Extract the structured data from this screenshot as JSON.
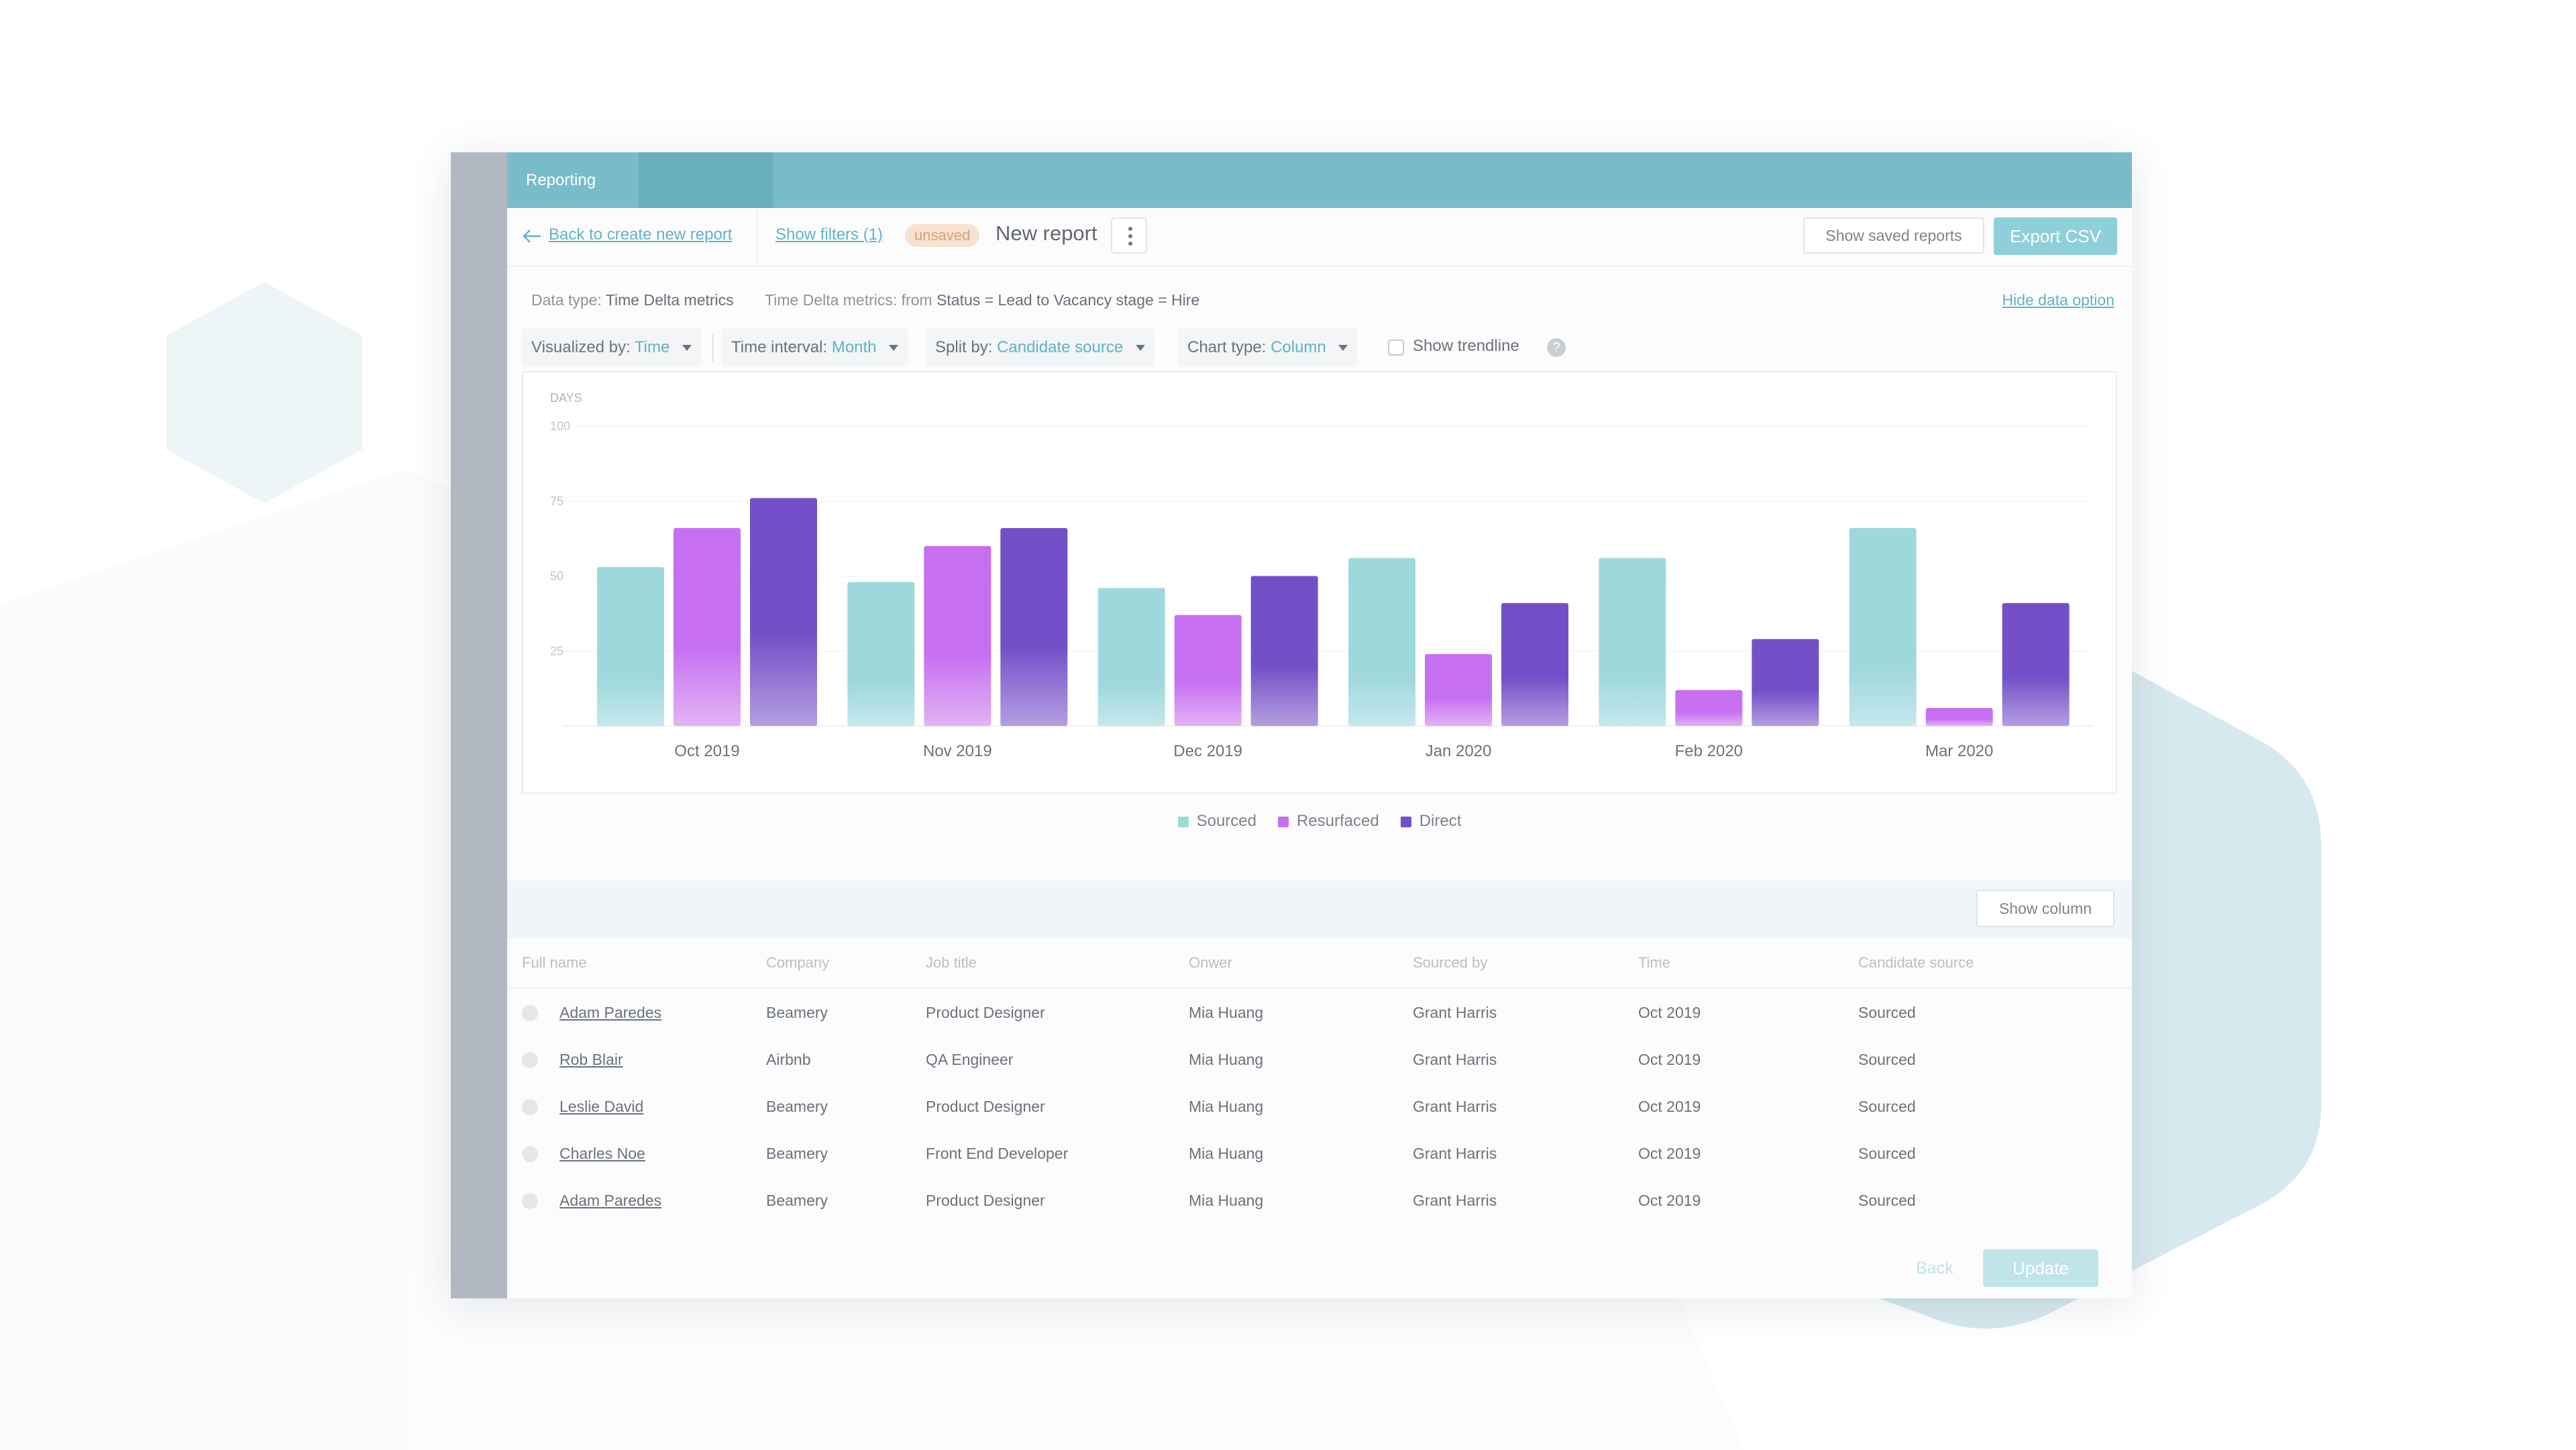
{
  "colors": {
    "topbar": "#78bcca",
    "accent": "#62b2c8",
    "sourced": "#9fd8db",
    "resurfaced": "#c66ff1",
    "direct": "#7350c8",
    "export_button": "#8fcfd9"
  },
  "topbar": {
    "tab_label": "Reporting"
  },
  "header": {
    "back_link": "Back to create new report",
    "filters_link": "Show filters (1)",
    "unsaved_badge": "unsaved",
    "report_title": "New report",
    "saved_reports_button": "Show saved reports",
    "export_button": "Export CSV"
  },
  "data_type": {
    "label": "Data type:",
    "value": "Time Delta metrics",
    "metric_label": "Time Delta metrics: from",
    "status_word": "Status",
    "status_value": "= Lead to",
    "stage_word": "Vacancy stage",
    "stage_value": "= Hire",
    "hide_link": "Hide data option"
  },
  "controls": {
    "visualized_by_label": "Visualized by:",
    "visualized_by_value": "Time",
    "interval_label": "Time interval:",
    "interval_value": "Month",
    "split_label": "Split by:",
    "split_value": "Candidate source",
    "chart_type_label": "Chart type:",
    "chart_type_value": "Column",
    "trendline_label": "Show trendline",
    "help_glyph": "?"
  },
  "chart_data": {
    "type": "bar",
    "ylabel": "DAYS",
    "ylim": [
      0,
      100
    ],
    "yticks": [
      25,
      50,
      75,
      100
    ],
    "grid": true,
    "legend_position": "bottom-center",
    "categories": [
      "Oct 2019",
      "Nov 2019",
      "Dec 2019",
      "Jan 2020",
      "Feb 2020",
      "Mar 2020"
    ],
    "series": [
      {
        "name": "Sourced",
        "values": [
          53,
          48,
          46,
          56,
          56,
          66
        ]
      },
      {
        "name": "Resurfaced",
        "values": [
          66,
          60,
          37,
          24,
          12,
          6
        ]
      },
      {
        "name": "Direct",
        "values": [
          76,
          66,
          50,
          41,
          29,
          41
        ]
      }
    ]
  },
  "table_toolbar": {
    "show_column_button": "Show column"
  },
  "table": {
    "columns": [
      "Full name",
      "Company",
      "Job title",
      "Onwer",
      "Sourced by",
      "Time",
      "Candidate source"
    ],
    "rows": [
      [
        "Adam Paredes",
        "Beamery",
        "Product Designer",
        "Mia Huang",
        "Grant Harris",
        "Oct 2019",
        "Sourced"
      ],
      [
        "Rob Blair",
        "Airbnb",
        "QA Engineer",
        "Mia Huang",
        "Grant Harris",
        "Oct 2019",
        "Sourced"
      ],
      [
        "Leslie David",
        "Beamery",
        "Product Designer",
        "Mia Huang",
        "Grant Harris",
        "Oct 2019",
        "Sourced"
      ],
      [
        "Charles Noe",
        "Beamery",
        "Front End Developer",
        "Mia Huang",
        "Grant Harris",
        "Oct 2019",
        "Sourced"
      ],
      [
        "Adam Paredes",
        "Beamery",
        "Product Designer",
        "Mia Huang",
        "Grant Harris",
        "Oct 2019",
        "Sourced"
      ]
    ]
  },
  "footer": {
    "back_button": "Back",
    "update_button": "Update"
  }
}
